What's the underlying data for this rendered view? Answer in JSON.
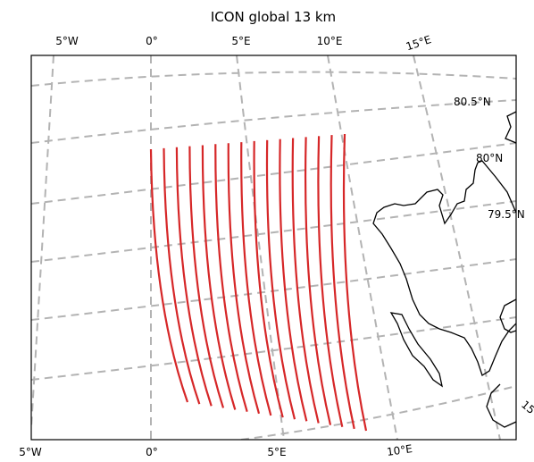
{
  "map": {
    "title": "ICON global 13 km",
    "projection": "polar stereographic",
    "gridlines": {
      "style": "dashed",
      "color": "#b3b3b3"
    },
    "track_color": "#d62728",
    "coastline_color": "#000000",
    "track_count": 16,
    "longitude_labels_top": [
      "5°W",
      "0°",
      "5°E",
      "10°E",
      "15°E"
    ],
    "longitude_labels_bottom": [
      "5°W",
      "0°",
      "5°E",
      "10°E"
    ],
    "latitude_labels_right": [
      "80.5°N",
      "80°N",
      "79.5°N"
    ],
    "clipped_edge_label": "15"
  }
}
